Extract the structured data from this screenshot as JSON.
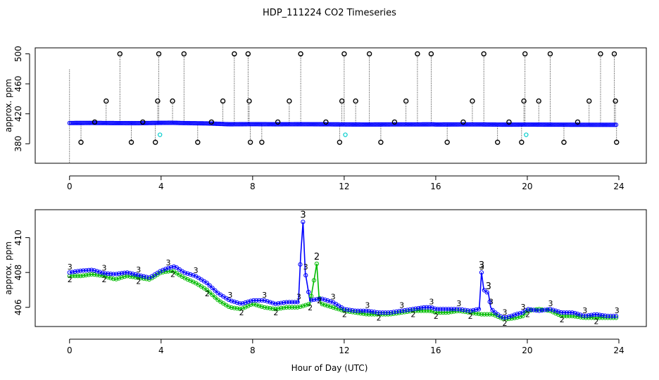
{
  "figure": {
    "title": "HDP_111224  CO2 Timeseries",
    "xlabel": "Hour of Day (UTC)"
  },
  "chart_data": [
    {
      "type": "scatter",
      "panel": "top",
      "title": "",
      "xlabel": "",
      "ylabel": "approx. ppm",
      "xlim": [
        -1.5,
        25.2
      ],
      "ylim": [
        354,
        508
      ],
      "x_ticks": [
        0,
        4,
        8,
        12,
        16,
        20,
        24
      ],
      "y_ticks": [
        380,
        420,
        460,
        500
      ],
      "y_tick_labels": [
        "380",
        "420",
        "460",
        "500"
      ],
      "grid": false,
      "colors": {
        "main": "#0000ff",
        "spikes": "#000000",
        "low": "#00cccc",
        "alt": "#00bb00"
      },
      "baseline": {
        "x": [
          0,
          1,
          2,
          3,
          4,
          4.5,
          5,
          6,
          7,
          8,
          9,
          10,
          11,
          12,
          13,
          14,
          15,
          15.9,
          16,
          17,
          18,
          19,
          20,
          21,
          22,
          23,
          23.9
        ],
        "y": [
          407.7,
          407.8,
          407.6,
          407.5,
          407.9,
          408.0,
          407.6,
          407.2,
          406.0,
          406.2,
          406.0,
          406.1,
          406.0,
          405.8,
          405.7,
          405.8,
          405.8,
          405.9,
          405.7,
          405.8,
          405.8,
          405.5,
          405.6,
          405.5,
          405.4,
          405.3,
          405.3
        ]
      },
      "spikes_high": [
        2.2,
        3.9,
        5.0,
        7.2,
        7.8,
        10.1,
        12.0,
        13.1,
        15.2,
        15.8,
        18.1,
        19.9,
        21.0,
        23.2,
        23.8
      ],
      "spikes_mid": [
        1.6,
        3.85,
        4.5,
        6.7,
        7.85,
        9.6,
        11.9,
        12.5,
        14.7,
        17.6,
        19.85,
        20.5,
        22.7,
        23.85
      ],
      "spikes_low": [
        0.5,
        2.7,
        3.75,
        5.6,
        7.9,
        8.4,
        11.8,
        13.6,
        16.5,
        18.7,
        19.75,
        21.6,
        23.9
      ],
      "spikes_near": [
        1.1,
        3.2,
        6.2,
        9.1,
        11.2,
        14.2,
        17.2,
        19.2,
        22.2
      ],
      "low_points": [
        {
          "x": 3.95,
          "y": 392
        },
        {
          "x": 12.05,
          "y": 392
        },
        {
          "x": 19.95,
          "y": 392
        }
      ],
      "high_value": 500,
      "mid_value": 437,
      "low_value": 382,
      "near_value": 409
    },
    {
      "type": "line",
      "panel": "bottom",
      "title": "",
      "xlabel": "Hour of Day (UTC)",
      "ylabel": "approx. ppm",
      "xlim": [
        -1.5,
        25.2
      ],
      "ylim": [
        404.9,
        411.6
      ],
      "x_ticks": [
        0,
        4,
        8,
        12,
        16,
        20,
        24
      ],
      "y_ticks": [
        406,
        408,
        410
      ],
      "y_tick_labels": [
        "406",
        "408",
        "410"
      ],
      "grid": false,
      "series": [
        {
          "color": "#0000ff",
          "label_char": "3",
          "x": [
            0,
            0.5,
            1,
            1.5,
            2,
            2.5,
            3,
            3.5,
            4,
            4.3,
            4.6,
            5,
            5.5,
            6,
            6.5,
            7,
            7.5,
            8,
            8.5,
            9,
            9.5,
            10,
            10.1,
            10.2,
            10.3,
            10.5,
            11,
            11.5,
            12,
            12.5,
            13,
            13.5,
            14,
            14.5,
            15,
            15.5,
            15.8,
            16,
            16.5,
            17,
            17.5,
            17.9,
            18.0,
            18.1,
            18.3,
            18.4,
            18.5,
            18.8,
            19,
            19.3,
            19.5,
            19.8,
            20,
            20.5,
            21,
            21.5,
            22,
            22.5,
            23,
            23.5,
            23.9
          ],
          "y": [
            408.0,
            408.1,
            408.15,
            407.95,
            407.9,
            408.0,
            407.85,
            407.7,
            408.1,
            408.25,
            408.35,
            408.0,
            407.8,
            407.4,
            406.8,
            406.4,
            406.2,
            406.4,
            406.4,
            406.2,
            406.3,
            406.3,
            409.0,
            410.9,
            408.0,
            406.4,
            406.5,
            406.3,
            405.9,
            405.8,
            405.8,
            405.7,
            405.7,
            405.8,
            405.9,
            406.0,
            406.0,
            405.9,
            405.9,
            405.9,
            405.8,
            405.9,
            408.0,
            407.0,
            406.8,
            406.0,
            405.8,
            405.5,
            405.4,
            405.5,
            405.6,
            405.7,
            405.9,
            405.8,
            405.9,
            405.7,
            405.7,
            405.5,
            405.6,
            405.5,
            405.5
          ]
        },
        {
          "color": "#00bb00",
          "label_char": "2",
          "x": [
            0,
            0.5,
            1,
            1.5,
            2,
            2.5,
            3,
            3.5,
            4,
            4.5,
            5,
            5.5,
            6,
            6.5,
            7,
            7.5,
            8,
            8.5,
            9,
            9.5,
            10,
            10.5,
            10.7,
            10.8,
            10.9,
            11,
            11.5,
            12,
            12.5,
            13,
            13.5,
            14,
            14.5,
            15,
            15.5,
            15.8,
            16,
            16.5,
            17,
            17.5,
            18,
            18.5,
            19,
            19.5,
            19.8,
            20,
            20.5,
            21,
            21.5,
            22,
            22.5,
            23,
            23.5,
            23.9
          ],
          "y": [
            407.8,
            407.8,
            407.9,
            407.8,
            407.6,
            407.8,
            407.7,
            407.6,
            408.0,
            408.1,
            407.7,
            407.4,
            407.0,
            406.4,
            406.0,
            405.9,
            406.2,
            406.0,
            405.9,
            406.0,
            406.0,
            406.2,
            407.7,
            408.5,
            406.6,
            406.2,
            406.0,
            405.8,
            405.7,
            405.6,
            405.6,
            405.6,
            405.7,
            405.8,
            405.8,
            405.8,
            405.7,
            405.7,
            405.8,
            405.7,
            405.6,
            405.6,
            405.3,
            405.4,
            405.5,
            405.8,
            405.9,
            405.8,
            405.5,
            405.5,
            405.4,
            405.4,
            405.4,
            405.4
          ]
        }
      ]
    }
  ]
}
